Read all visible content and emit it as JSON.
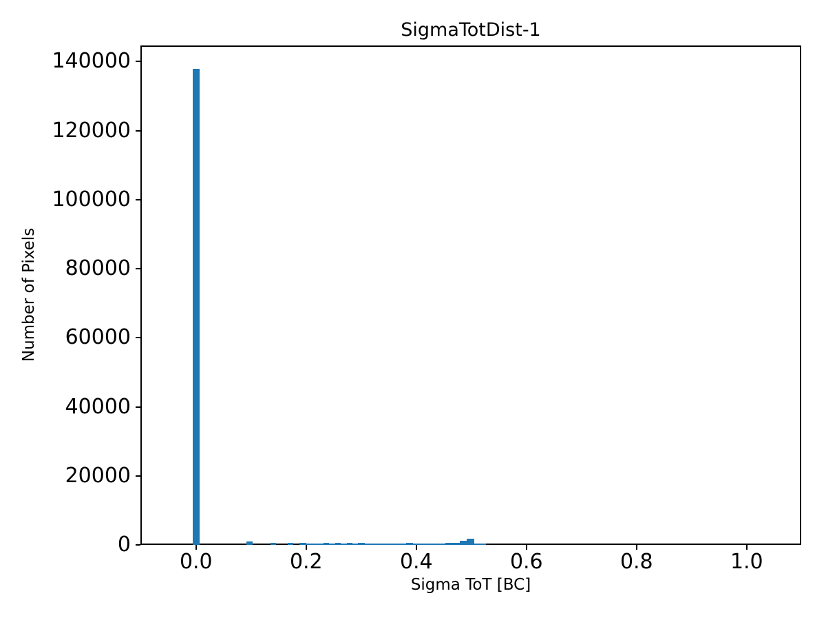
{
  "chart_data": {
    "type": "histogram",
    "title": "SigmaTotDist-1",
    "xlabel": "Sigma ToT [BC]",
    "ylabel": "Number of Pixels",
    "bar_color": "#1f77b4",
    "axis_color": "#000000",
    "grid": false,
    "legend": null,
    "xlim": [
      -0.101,
      1.099
    ],
    "ylim": [
      0,
      144650
    ],
    "xticks": [
      {
        "value": 0.0,
        "label": "0.0"
      },
      {
        "value": 0.2,
        "label": "0.2"
      },
      {
        "value": 0.4,
        "label": "0.4"
      },
      {
        "value": 0.6,
        "label": "0.6"
      },
      {
        "value": 0.8,
        "label": "0.8"
      },
      {
        "value": 1.0,
        "label": "1.0"
      }
    ],
    "yticks": [
      {
        "value": 0,
        "label": "0"
      },
      {
        "value": 20000,
        "label": "20000"
      },
      {
        "value": 40000,
        "label": "40000"
      },
      {
        "value": 60000,
        "label": "60000"
      },
      {
        "value": 80000,
        "label": "80000"
      },
      {
        "value": 100000,
        "label": "100000"
      },
      {
        "value": 120000,
        "label": "120000"
      },
      {
        "value": 140000,
        "label": "140000"
      }
    ],
    "bins": [
      {
        "x0": -0.00625,
        "x1": 0.00625,
        "count": 137800
      },
      {
        "x0": 0.092,
        "x1": 0.103,
        "count": 950
      },
      {
        "x0": 0.135,
        "x1": 0.145,
        "count": 660
      },
      {
        "x0": 0.167,
        "x1": 0.177,
        "count": 660
      },
      {
        "x0": 0.188,
        "x1": 0.2,
        "count": 600
      },
      {
        "x0": 0.2,
        "x1": 0.232,
        "count": 300
      },
      {
        "x0": 0.232,
        "x1": 0.242,
        "count": 660
      },
      {
        "x0": 0.242,
        "x1": 0.253,
        "count": 300
      },
      {
        "x0": 0.253,
        "x1": 0.263,
        "count": 600
      },
      {
        "x0": 0.263,
        "x1": 0.274,
        "count": 300
      },
      {
        "x0": 0.274,
        "x1": 0.284,
        "count": 660
      },
      {
        "x0": 0.284,
        "x1": 0.294,
        "count": 300
      },
      {
        "x0": 0.294,
        "x1": 0.307,
        "count": 600
      },
      {
        "x0": 0.307,
        "x1": 0.382,
        "count": 310
      },
      {
        "x0": 0.382,
        "x1": 0.394,
        "count": 500
      },
      {
        "x0": 0.394,
        "x1": 0.405,
        "count": 320
      },
      {
        "x0": 0.405,
        "x1": 0.417,
        "count": 450
      },
      {
        "x0": 0.417,
        "x1": 0.453,
        "count": 340
      },
      {
        "x0": 0.453,
        "x1": 0.479,
        "count": 620
      },
      {
        "x0": 0.479,
        "x1": 0.492,
        "count": 1150
      },
      {
        "x0": 0.492,
        "x1": 0.505,
        "count": 1800
      },
      {
        "x0": 0.505,
        "x1": 0.526,
        "count": 340
      }
    ]
  }
}
